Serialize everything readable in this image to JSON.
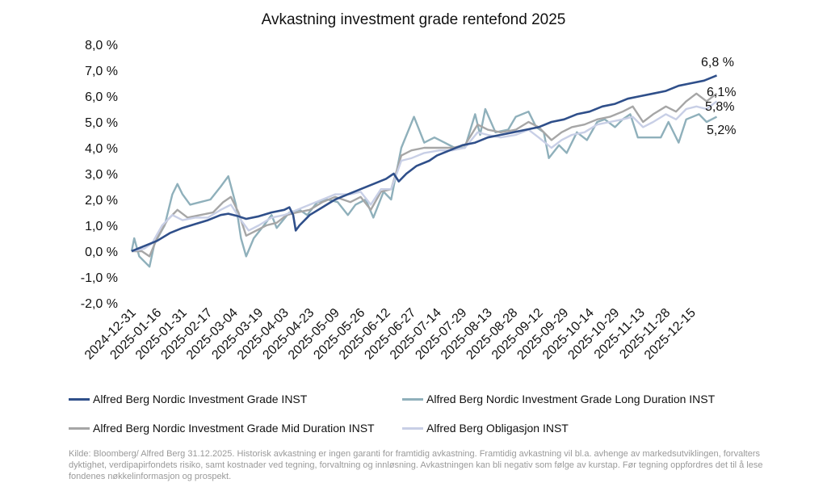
{
  "chart_data": {
    "type": "line",
    "title": "Avkastning investment grade rentefond 2025",
    "xlabel": "",
    "ylabel": "",
    "ylim": [
      -2,
      8
    ],
    "yticks": [
      -2,
      -1,
      0,
      1,
      2,
      3,
      4,
      5,
      6,
      7,
      8
    ],
    "ytick_labels": [
      "-2,0 %",
      "-1,0 %",
      "0,0 %",
      "1,0 %",
      "2,0 %",
      "3,0 %",
      "4,0 %",
      "5,0 %",
      "6,0 %",
      "7,0 %",
      "8,0 %"
    ],
    "x_tick_labels": [
      "2024-12-31",
      "2025-01-16",
      "2025-01-31",
      "2025-02-17",
      "2025-03-04",
      "2025-03-19",
      "2025-04-03",
      "2025-04-23",
      "2025-05-09",
      "2025-05-26",
      "2025-06-12",
      "2025-06-27",
      "2025-07-14",
      "2025-07-29",
      "2025-08-13",
      "2025-08-28",
      "2025-09-12",
      "2025-09-29",
      "2025-10-14",
      "2025-10-29",
      "2025-11-13",
      "2025-11-28",
      "2025-12-15"
    ],
    "x_note": "x values are positions measured in x-tick-label intervals (0 = 2024-12-31, 23 = 2025-12-31)",
    "xlim": [
      0,
      23
    ],
    "grid": false,
    "legend_placement": "bottom",
    "series": [
      {
        "name": "Alfred Berg Nordic Investment Grade INST",
        "color": "#2f4f8a",
        "end_label": "6,8 %",
        "points": [
          [
            0,
            0
          ],
          [
            0.5,
            0.2
          ],
          [
            1,
            0.4
          ],
          [
            1.5,
            0.7
          ],
          [
            2,
            0.9
          ],
          [
            2.5,
            1.05
          ],
          [
            3,
            1.2
          ],
          [
            3.5,
            1.4
          ],
          [
            3.8,
            1.45
          ],
          [
            4.2,
            1.35
          ],
          [
            4.5,
            1.25
          ],
          [
            5,
            1.35
          ],
          [
            5.5,
            1.5
          ],
          [
            6,
            1.6
          ],
          [
            6.2,
            1.7
          ],
          [
            6.35,
            1.4
          ],
          [
            6.45,
            0.8
          ],
          [
            6.6,
            1.0
          ],
          [
            7,
            1.4
          ],
          [
            7.5,
            1.7
          ],
          [
            8,
            2.0
          ],
          [
            8.5,
            2.2
          ],
          [
            9,
            2.4
          ],
          [
            9.5,
            2.6
          ],
          [
            10,
            2.8
          ],
          [
            10.3,
            3.0
          ],
          [
            10.5,
            2.7
          ],
          [
            10.8,
            3.0
          ],
          [
            11.2,
            3.3
          ],
          [
            11.7,
            3.5
          ],
          [
            12,
            3.7
          ],
          [
            12.5,
            3.9
          ],
          [
            13,
            4.1
          ],
          [
            13.5,
            4.2
          ],
          [
            14,
            4.4
          ],
          [
            14.5,
            4.5
          ],
          [
            15,
            4.6
          ],
          [
            15.5,
            4.7
          ],
          [
            16,
            4.8
          ],
          [
            16.5,
            5.0
          ],
          [
            17,
            5.1
          ],
          [
            17.5,
            5.3
          ],
          [
            18,
            5.4
          ],
          [
            18.5,
            5.6
          ],
          [
            19,
            5.7
          ],
          [
            19.5,
            5.9
          ],
          [
            20,
            6.0
          ],
          [
            20.5,
            6.1
          ],
          [
            21,
            6.2
          ],
          [
            21.5,
            6.4
          ],
          [
            22,
            6.5
          ],
          [
            22.5,
            6.6
          ],
          [
            23,
            6.8
          ]
        ]
      },
      {
        "name": "Alfred Berg Nordic Investment Grade Long Duration INST",
        "color": "#8fb0bb",
        "end_label": "5,2%",
        "points": [
          [
            0,
            0
          ],
          [
            0.1,
            0.5
          ],
          [
            0.3,
            -0.2
          ],
          [
            0.7,
            -0.6
          ],
          [
            0.9,
            0.3
          ],
          [
            1.3,
            1.0
          ],
          [
            1.6,
            2.2
          ],
          [
            1.8,
            2.6
          ],
          [
            2.0,
            2.2
          ],
          [
            2.3,
            1.8
          ],
          [
            2.7,
            1.9
          ],
          [
            3.1,
            2.0
          ],
          [
            3.5,
            2.5
          ],
          [
            3.8,
            2.9
          ],
          [
            4.1,
            1.8
          ],
          [
            4.3,
            0.5
          ],
          [
            4.5,
            -0.2
          ],
          [
            4.8,
            0.5
          ],
          [
            5.2,
            1.0
          ],
          [
            5.5,
            1.4
          ],
          [
            5.7,
            0.9
          ],
          [
            6.2,
            1.5
          ],
          [
            6.6,
            1.6
          ],
          [
            6.9,
            1.4
          ],
          [
            7.3,
            1.9
          ],
          [
            7.7,
            2.0
          ],
          [
            8.1,
            1.9
          ],
          [
            8.5,
            1.4
          ],
          [
            8.8,
            1.8
          ],
          [
            9.2,
            2.0
          ],
          [
            9.5,
            1.3
          ],
          [
            9.9,
            2.3
          ],
          [
            10.2,
            2.0
          ],
          [
            10.6,
            4.0
          ],
          [
            11.1,
            5.2
          ],
          [
            11.5,
            4.2
          ],
          [
            11.9,
            4.4
          ],
          [
            12.3,
            4.2
          ],
          [
            12.7,
            4.0
          ],
          [
            13.1,
            4.0
          ],
          [
            13.5,
            5.3
          ],
          [
            13.7,
            4.5
          ],
          [
            13.9,
            5.5
          ],
          [
            14.3,
            4.6
          ],
          [
            14.8,
            4.7
          ],
          [
            15.1,
            5.2
          ],
          [
            15.6,
            5.4
          ],
          [
            15.9,
            4.8
          ],
          [
            16.2,
            4.6
          ],
          [
            16.4,
            3.6
          ],
          [
            16.8,
            4.1
          ],
          [
            17.1,
            3.8
          ],
          [
            17.5,
            4.6
          ],
          [
            17.9,
            4.3
          ],
          [
            18.3,
            5.0
          ],
          [
            18.6,
            5.1
          ],
          [
            19.0,
            4.8
          ],
          [
            19.3,
            5.1
          ],
          [
            19.6,
            5.3
          ],
          [
            19.9,
            4.4
          ],
          [
            20.3,
            4.4
          ],
          [
            20.8,
            4.4
          ],
          [
            21.1,
            5.0
          ],
          [
            21.5,
            4.2
          ],
          [
            21.8,
            5.1
          ],
          [
            22.3,
            5.3
          ],
          [
            22.6,
            5.0
          ],
          [
            23.0,
            5.2
          ]
        ]
      },
      {
        "name": "Alfred Berg Nordic Investment Grade Mid Duration INST",
        "color": "#a6a6a6",
        "end_label": "6,1%",
        "points": [
          [
            0,
            0
          ],
          [
            0.4,
            0.0
          ],
          [
            0.7,
            -0.2
          ],
          [
            1.0,
            0.5
          ],
          [
            1.4,
            1.2
          ],
          [
            1.8,
            1.6
          ],
          [
            2.2,
            1.3
          ],
          [
            2.7,
            1.4
          ],
          [
            3.2,
            1.5
          ],
          [
            3.6,
            1.9
          ],
          [
            3.9,
            2.1
          ],
          [
            4.2,
            1.5
          ],
          [
            4.5,
            0.6
          ],
          [
            4.9,
            0.8
          ],
          [
            5.3,
            1.0
          ],
          [
            5.7,
            1.1
          ],
          [
            6.1,
            1.4
          ],
          [
            6.5,
            1.5
          ],
          [
            7.0,
            1.6
          ],
          [
            7.5,
            1.9
          ],
          [
            8.0,
            2.1
          ],
          [
            8.6,
            1.9
          ],
          [
            9.0,
            2.1
          ],
          [
            9.4,
            1.6
          ],
          [
            9.8,
            2.3
          ],
          [
            10.2,
            2.4
          ],
          [
            10.6,
            3.7
          ],
          [
            11.0,
            3.9
          ],
          [
            11.5,
            4.0
          ],
          [
            12.1,
            4.0
          ],
          [
            12.6,
            4.0
          ],
          [
            13.1,
            4.1
          ],
          [
            13.6,
            4.9
          ],
          [
            14.0,
            4.7
          ],
          [
            14.5,
            4.6
          ],
          [
            15.1,
            4.7
          ],
          [
            15.6,
            5.0
          ],
          [
            16.0,
            4.8
          ],
          [
            16.5,
            4.3
          ],
          [
            16.9,
            4.6
          ],
          [
            17.3,
            4.8
          ],
          [
            17.8,
            4.9
          ],
          [
            18.3,
            5.1
          ],
          [
            18.8,
            5.2
          ],
          [
            19.3,
            5.4
          ],
          [
            19.7,
            5.6
          ],
          [
            20.1,
            5.0
          ],
          [
            20.5,
            5.3
          ],
          [
            21.0,
            5.6
          ],
          [
            21.4,
            5.4
          ],
          [
            21.8,
            5.8
          ],
          [
            22.2,
            6.1
          ],
          [
            22.6,
            5.8
          ],
          [
            23.0,
            6.1
          ]
        ]
      },
      {
        "name": "Alfred Berg Obligasjon INST",
        "color": "#c8cfe6",
        "end_label": "5,8%",
        "points": [
          [
            0,
            0
          ],
          [
            0.5,
            0.1
          ],
          [
            0.8,
            0.3
          ],
          [
            1.2,
            1.0
          ],
          [
            1.6,
            1.4
          ],
          [
            2.0,
            1.2
          ],
          [
            2.5,
            1.3
          ],
          [
            3.0,
            1.3
          ],
          [
            3.5,
            1.6
          ],
          [
            3.9,
            1.8
          ],
          [
            4.3,
            1.2
          ],
          [
            4.6,
            0.8
          ],
          [
            5.0,
            1.0
          ],
          [
            5.5,
            1.3
          ],
          [
            6.0,
            1.4
          ],
          [
            6.5,
            1.6
          ],
          [
            7.0,
            1.8
          ],
          [
            7.5,
            2.0
          ],
          [
            8.0,
            2.2
          ],
          [
            8.6,
            2.2
          ],
          [
            9.0,
            2.3
          ],
          [
            9.4,
            1.8
          ],
          [
            9.8,
            2.4
          ],
          [
            10.2,
            2.4
          ],
          [
            10.6,
            3.5
          ],
          [
            11.0,
            3.6
          ],
          [
            11.5,
            3.8
          ],
          [
            12.1,
            3.9
          ],
          [
            12.6,
            3.9
          ],
          [
            13.1,
            4.0
          ],
          [
            13.6,
            4.6
          ],
          [
            14.0,
            4.5
          ],
          [
            14.5,
            4.4
          ],
          [
            15.1,
            4.5
          ],
          [
            15.6,
            4.7
          ],
          [
            16.0,
            4.4
          ],
          [
            16.5,
            4.0
          ],
          [
            16.9,
            4.3
          ],
          [
            17.3,
            4.5
          ],
          [
            17.8,
            4.6
          ],
          [
            18.3,
            4.9
          ],
          [
            18.8,
            5.0
          ],
          [
            19.3,
            5.1
          ],
          [
            19.7,
            5.2
          ],
          [
            20.1,
            4.8
          ],
          [
            20.5,
            5.0
          ],
          [
            21.0,
            5.3
          ],
          [
            21.4,
            5.1
          ],
          [
            21.8,
            5.5
          ],
          [
            22.2,
            5.6
          ],
          [
            22.6,
            5.5
          ],
          [
            23.0,
            5.8
          ]
        ]
      }
    ]
  },
  "footer": "Kilde: Bloomberg/ Alfred Berg 31.12.2025. Historisk avkastning er ingen garanti for framtidig avkastning. Framtidig avkastning vil bl.a. avhenge av markedsutviklingen, forvalters dyktighet, verdipapirfondets risiko, samt kostnader ved tegning, forvaltning og innløsning. Avkastningen kan bli negativ som følge av kurstap. Før tegning oppfordres det til å lese fondenes nøkkelinformasjon og prospekt."
}
